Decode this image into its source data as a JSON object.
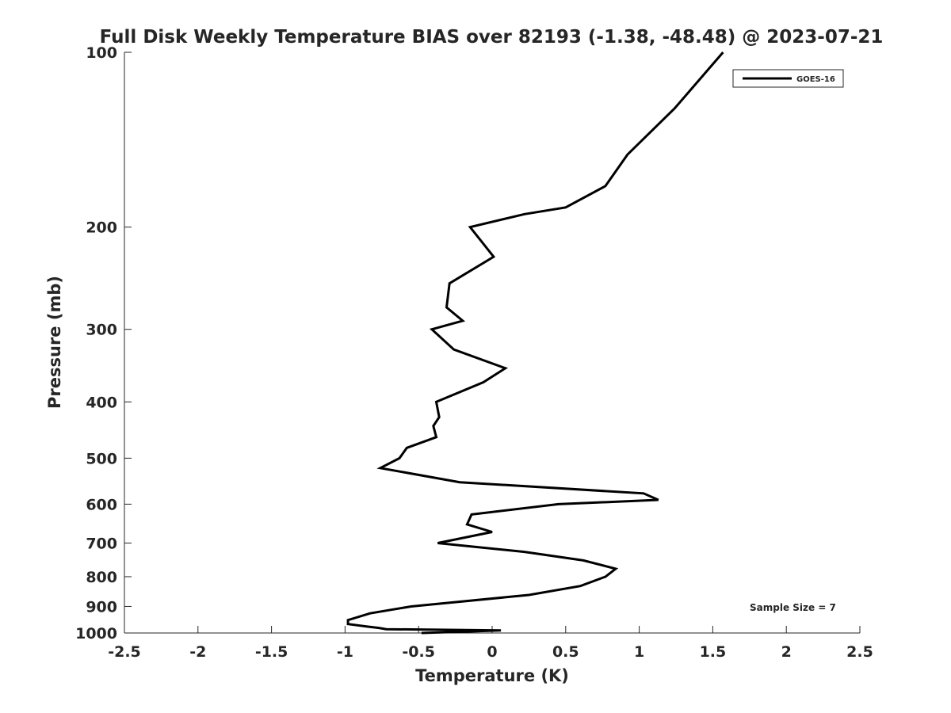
{
  "chart_data": {
    "type": "line",
    "title": "Full Disk Weekly Temperature BIAS over 82193 (-1.38, -48.48) @ 2023-07-21",
    "xlabel": "Temperature (K)",
    "ylabel": "Pressure (mb)",
    "xlim": [
      -2.5,
      2.5
    ],
    "ylim": [
      100,
      1000
    ],
    "yscale": "log",
    "yreversed": true,
    "grid": false,
    "legend_position": "top-right",
    "annotation": "Sample Size = 7",
    "xticks": [
      -2.5,
      -2,
      -1.5,
      -1,
      -0.5,
      0,
      0.5,
      1,
      1.5,
      2,
      2.5
    ],
    "xtick_labels": [
      "-2.5",
      "-2",
      "-1.5",
      "-1",
      "-0.5",
      "0",
      "0.5",
      "1",
      "1.5",
      "2",
      "2.5"
    ],
    "yticks": [
      100,
      200,
      300,
      400,
      500,
      600,
      700,
      800,
      900,
      1000
    ],
    "ytick_labels": [
      "100",
      "200",
      "300",
      "400",
      "500",
      "600",
      "700",
      "800",
      "900",
      "1000"
    ],
    "series": [
      {
        "name": "GOES-16",
        "color": "#000000",
        "points": [
          {
            "t": 1.57,
            "p": 100
          },
          {
            "t": 1.24,
            "p": 125
          },
          {
            "t": 0.92,
            "p": 150
          },
          {
            "t": 0.77,
            "p": 170
          },
          {
            "t": 0.5,
            "p": 185
          },
          {
            "t": 0.22,
            "p": 190
          },
          {
            "t": -0.15,
            "p": 200
          },
          {
            "t": 0.01,
            "p": 225
          },
          {
            "t": -0.29,
            "p": 250
          },
          {
            "t": -0.31,
            "p": 275
          },
          {
            "t": -0.2,
            "p": 290
          },
          {
            "t": -0.41,
            "p": 300
          },
          {
            "t": -0.26,
            "p": 325
          },
          {
            "t": 0.09,
            "p": 350
          },
          {
            "t": -0.06,
            "p": 370
          },
          {
            "t": -0.38,
            "p": 400
          },
          {
            "t": -0.36,
            "p": 425
          },
          {
            "t": -0.4,
            "p": 440
          },
          {
            "t": -0.38,
            "p": 460
          },
          {
            "t": -0.58,
            "p": 480
          },
          {
            "t": -0.63,
            "p": 500
          },
          {
            "t": -0.76,
            "p": 520
          },
          {
            "t": -0.22,
            "p": 550
          },
          {
            "t": 1.03,
            "p": 575
          },
          {
            "t": 1.13,
            "p": 590
          },
          {
            "t": 0.45,
            "p": 600
          },
          {
            "t": -0.14,
            "p": 625
          },
          {
            "t": -0.17,
            "p": 650
          },
          {
            "t": 0.0,
            "p": 670
          },
          {
            "t": -0.37,
            "p": 700
          },
          {
            "t": 0.22,
            "p": 725
          },
          {
            "t": 0.62,
            "p": 750
          },
          {
            "t": 0.84,
            "p": 775
          },
          {
            "t": 0.77,
            "p": 800
          },
          {
            "t": 0.6,
            "p": 830
          },
          {
            "t": 0.25,
            "p": 860
          },
          {
            "t": -0.55,
            "p": 900
          },
          {
            "t": -0.83,
            "p": 925
          },
          {
            "t": -0.98,
            "p": 950
          },
          {
            "t": -0.98,
            "p": 965
          },
          {
            "t": -0.85,
            "p": 975
          },
          {
            "t": -0.77,
            "p": 980
          },
          {
            "t": -0.72,
            "p": 985
          },
          {
            "t": 0.06,
            "p": 990
          },
          {
            "t": -0.48,
            "p": 1000
          }
        ]
      }
    ]
  }
}
